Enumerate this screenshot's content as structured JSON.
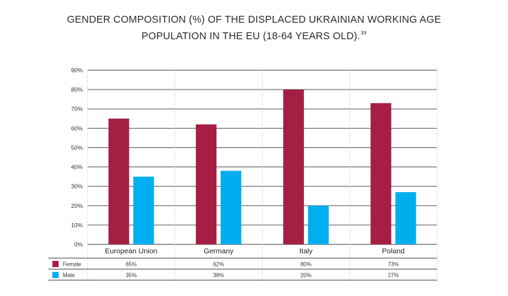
{
  "title": {
    "line1": "GENDER COMPOSITION (%) OF THE DISPLACED UKRAINIAN WORKING AGE",
    "line2": "POPULATION IN THE EU (18-64 YEARS OLD).",
    "footnote": "39"
  },
  "chart_data": {
    "type": "bar",
    "title": "GENDER COMPOSITION (%) OF THE DISPLACED UKRAINIAN WORKING AGE POPULATION IN THE EU (18-64 YEARS OLD).",
    "categories": [
      "European Union",
      "Germany",
      "Italy",
      "Poland"
    ],
    "series": [
      {
        "name": "Female",
        "color": "#A51E44",
        "values": [
          65,
          62,
          80,
          73
        ],
        "labels": [
          "65%",
          "62%",
          "80%",
          "73%"
        ]
      },
      {
        "name": "Male",
        "color": "#00AEEF",
        "values": [
          35,
          38,
          20,
          27
        ],
        "labels": [
          "35%",
          "38%",
          "20%",
          "27%"
        ]
      }
    ],
    "ylim": [
      0,
      90
    ],
    "yticks": [
      "0%",
      "10%",
      "20%",
      "30%",
      "40%",
      "50%",
      "60%",
      "70%",
      "80%",
      "90%"
    ],
    "grid": true,
    "legend": "data table below chart"
  }
}
